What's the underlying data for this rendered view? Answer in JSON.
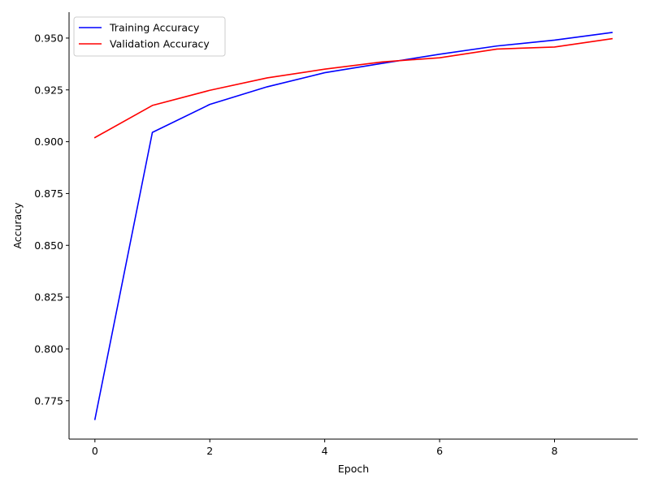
{
  "chart_data": {
    "type": "line",
    "title": "",
    "xlabel": "Epoch",
    "ylabel": "Accuracy",
    "xlim": [
      -0.45,
      9.45
    ],
    "ylim": [
      0.7565,
      0.9625
    ],
    "xticks": [
      0,
      2,
      4,
      6,
      8
    ],
    "xtick_labels": [
      "0",
      "2",
      "4",
      "6",
      "8"
    ],
    "yticks": [
      0.775,
      0.8,
      0.825,
      0.85,
      0.875,
      0.9,
      0.925,
      0.95
    ],
    "ytick_labels": [
      "0.775",
      "0.800",
      "0.825",
      "0.850",
      "0.875",
      "0.900",
      "0.925",
      "0.950"
    ],
    "grid": false,
    "legend_position": "top-left",
    "x": [
      0,
      1,
      2,
      3,
      4,
      5,
      6,
      7,
      8,
      9
    ],
    "series": [
      {
        "name": "Training Accuracy",
        "color": "#0000ff",
        "values": [
          0.766,
          0.9045,
          0.918,
          0.9265,
          0.9333,
          0.9378,
          0.9422,
          0.9462,
          0.949,
          0.9527
        ]
      },
      {
        "name": "Validation Accuracy",
        "color": "#ff0000",
        "values": [
          0.902,
          0.9175,
          0.9248,
          0.9308,
          0.935,
          0.9385,
          0.9405,
          0.9447,
          0.9457,
          0.9497
        ]
      }
    ]
  }
}
